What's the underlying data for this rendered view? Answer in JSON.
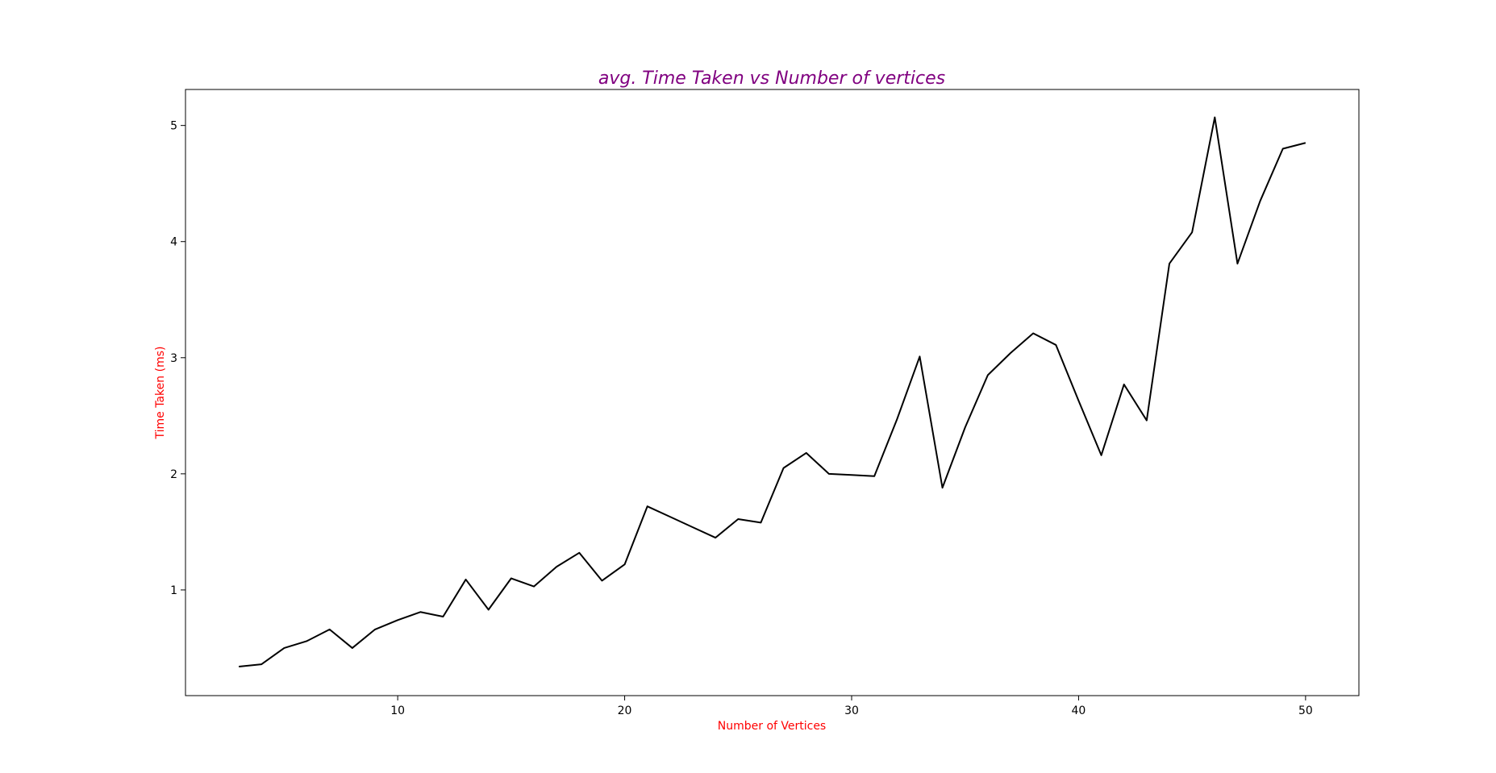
{
  "colors": {
    "title": "#800080",
    "axis_labels": "#ff0000",
    "line": "#000000",
    "frame": "#000000"
  },
  "chart_data": {
    "type": "line",
    "title": "avg. Time Taken vs Number of vertices",
    "xlabel": "Number of Vertices",
    "ylabel": "Time Taken (ms)",
    "xlim": [
      0.65,
      52.35
    ],
    "ylim": [
      0.09,
      5.31
    ],
    "xticks": [
      10,
      20,
      30,
      40,
      50
    ],
    "yticks": [
      1,
      2,
      3,
      4,
      5
    ],
    "grid": false,
    "legend": "none",
    "series": [
      {
        "x": [
          3,
          4,
          5,
          6,
          7,
          8,
          9,
          10,
          11,
          12,
          13,
          14,
          15,
          16,
          17,
          18,
          19,
          20,
          21,
          22,
          23,
          24,
          25,
          26,
          27,
          28,
          29,
          30,
          31,
          32,
          33,
          34,
          35,
          36,
          37,
          38,
          39,
          40,
          41,
          42,
          43,
          44,
          45,
          46,
          47,
          48,
          49,
          50
        ],
        "values": [
          0.34,
          0.36,
          0.5,
          0.56,
          0.66,
          0.5,
          0.66,
          0.74,
          0.81,
          0.77,
          1.09,
          0.83,
          1.1,
          1.03,
          1.2,
          1.32,
          1.08,
          1.22,
          1.72,
          1.63,
          1.54,
          1.45,
          1.61,
          1.58,
          2.05,
          2.18,
          2.0,
          1.99,
          1.98,
          2.47,
          3.01,
          1.88,
          2.4,
          2.85,
          3.04,
          3.21,
          3.11,
          2.63,
          2.16,
          2.77,
          2.46,
          3.81,
          4.08,
          5.07,
          3.81,
          4.35,
          4.8,
          4.85
        ]
      }
    ]
  }
}
